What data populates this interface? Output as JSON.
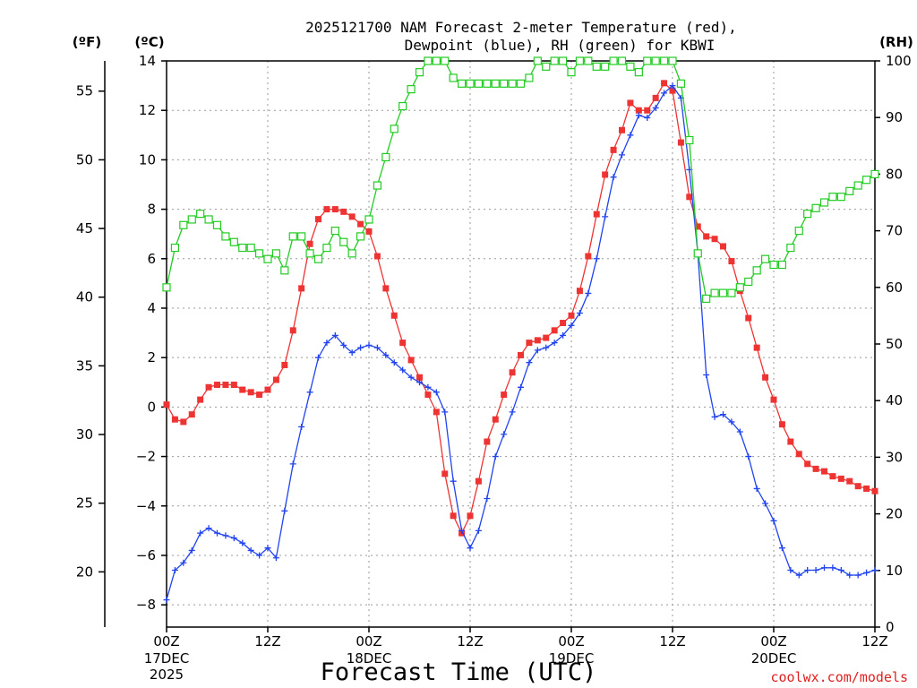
{
  "colors": {
    "temperature": "#ee3333",
    "dewpoint": "#2244ee",
    "rh": "#22cc22",
    "grid": "#999999",
    "credit": "#dd2222"
  },
  "chart_data": {
    "type": "line",
    "title_line1": "2025121700 NAM Forecast 2-meter Temperature (red),",
    "title_line2": "Dewpoint (blue), RH (green) for KBWI",
    "xlabel": "Forecast Time (UTC)",
    "credit": "coolwx.com/models",
    "units": {
      "fahrenheit": "(ºF)",
      "celsius": "(ºC)",
      "rh": "(RH)"
    },
    "x_range_hours": [
      0,
      84
    ],
    "celsius_range": [
      -8.9,
      14
    ],
    "rh_range": [
      0,
      100
    ],
    "x_ticks": [
      {
        "hour": 0,
        "label": "00Z",
        "date": "17DEC",
        "year": "2025"
      },
      {
        "hour": 12,
        "label": "12Z",
        "date": "",
        "year": ""
      },
      {
        "hour": 24,
        "label": "00Z",
        "date": "18DEC",
        "year": ""
      },
      {
        "hour": 36,
        "label": "12Z",
        "date": "",
        "year": ""
      },
      {
        "hour": 48,
        "label": "00Z",
        "date": "19DEC",
        "year": ""
      },
      {
        "hour": 60,
        "label": "12Z",
        "date": "",
        "year": ""
      },
      {
        "hour": 72,
        "label": "00Z",
        "date": "20DEC",
        "year": ""
      },
      {
        "hour": 84,
        "label": "12Z",
        "date": "",
        "year": ""
      }
    ],
    "celsius_ticks": [
      "-8",
      "-6",
      "-4",
      "-2",
      "0",
      "2",
      "4",
      "6",
      "8",
      "10",
      "12",
      "14"
    ],
    "fahrenheit_ticks": [
      "20",
      "25",
      "30",
      "35",
      "40",
      "45",
      "50",
      "55"
    ],
    "rh_ticks": [
      "0",
      "10",
      "20",
      "30",
      "40",
      "50",
      "60",
      "70",
      "80",
      "90",
      "100"
    ],
    "series": [
      {
        "name": "Temperature",
        "unit": "C",
        "marker": "filled-square",
        "values": [
          [
            0,
            0.1
          ],
          [
            1,
            -0.5
          ],
          [
            2,
            -0.6
          ],
          [
            3,
            -0.3
          ],
          [
            4,
            0.3
          ],
          [
            5,
            0.8
          ],
          [
            6,
            0.9
          ],
          [
            7,
            0.9
          ],
          [
            8,
            0.9
          ],
          [
            9,
            0.7
          ],
          [
            10,
            0.6
          ],
          [
            11,
            0.5
          ],
          [
            12,
            0.7
          ],
          [
            13,
            1.1
          ],
          [
            14,
            1.7
          ],
          [
            15,
            3.1
          ],
          [
            16,
            4.8
          ],
          [
            17,
            6.6
          ],
          [
            18,
            7.6
          ],
          [
            19,
            8.0
          ],
          [
            20,
            8.0
          ],
          [
            21,
            7.9
          ],
          [
            22,
            7.7
          ],
          [
            23,
            7.4
          ],
          [
            24,
            7.1
          ],
          [
            25,
            6.1
          ],
          [
            26,
            4.8
          ],
          [
            27,
            3.7
          ],
          [
            28,
            2.6
          ],
          [
            29,
            1.9
          ],
          [
            30,
            1.2
          ],
          [
            31,
            0.5
          ],
          [
            32,
            -0.2
          ],
          [
            33,
            -2.7
          ],
          [
            34,
            -4.4
          ],
          [
            35,
            -5.1
          ],
          [
            36,
            -4.4
          ],
          [
            37,
            -3.0
          ],
          [
            38,
            -1.4
          ],
          [
            39,
            -0.5
          ],
          [
            40,
            0.5
          ],
          [
            41,
            1.4
          ],
          [
            42,
            2.1
          ],
          [
            43,
            2.6
          ],
          [
            44,
            2.7
          ],
          [
            45,
            2.8
          ],
          [
            46,
            3.1
          ],
          [
            47,
            3.4
          ],
          [
            48,
            3.7
          ],
          [
            49,
            4.7
          ],
          [
            50,
            6.1
          ],
          [
            51,
            7.8
          ],
          [
            52,
            9.4
          ],
          [
            53,
            10.4
          ],
          [
            54,
            11.2
          ],
          [
            55,
            12.3
          ],
          [
            56,
            12.0
          ],
          [
            57,
            12.0
          ],
          [
            58,
            12.5
          ],
          [
            59,
            13.1
          ],
          [
            60,
            12.8
          ],
          [
            61,
            10.7
          ],
          [
            62,
            8.5
          ],
          [
            63,
            7.3
          ],
          [
            64,
            6.9
          ],
          [
            65,
            6.8
          ],
          [
            66,
            6.5
          ],
          [
            67,
            5.9
          ],
          [
            68,
            4.7
          ],
          [
            69,
            3.6
          ],
          [
            70,
            2.4
          ],
          [
            71,
            1.2
          ],
          [
            72,
            0.3
          ],
          [
            73,
            -0.7
          ],
          [
            74,
            -1.4
          ],
          [
            75,
            -1.9
          ],
          [
            76,
            -2.3
          ],
          [
            77,
            -2.5
          ],
          [
            78,
            -2.6
          ],
          [
            79,
            -2.8
          ],
          [
            80,
            -2.9
          ],
          [
            81,
            -3.0
          ],
          [
            82,
            -3.2
          ],
          [
            83,
            -3.3
          ],
          [
            84,
            -3.4
          ]
        ]
      },
      {
        "name": "Dewpoint",
        "unit": "C",
        "marker": "plus",
        "values": [
          [
            0,
            -7.8
          ],
          [
            1,
            -6.6
          ],
          [
            2,
            -6.3
          ],
          [
            3,
            -5.8
          ],
          [
            4,
            -5.1
          ],
          [
            5,
            -4.9
          ],
          [
            6,
            -5.1
          ],
          [
            7,
            -5.2
          ],
          [
            8,
            -5.3
          ],
          [
            9,
            -5.5
          ],
          [
            10,
            -5.8
          ],
          [
            11,
            -6.0
          ],
          [
            12,
            -5.7
          ],
          [
            13,
            -6.1
          ],
          [
            14,
            -4.2
          ],
          [
            15,
            -2.3
          ],
          [
            16,
            -0.8
          ],
          [
            17,
            0.6
          ],
          [
            18,
            2.0
          ],
          [
            19,
            2.6
          ],
          [
            20,
            2.9
          ],
          [
            21,
            2.5
          ],
          [
            22,
            2.2
          ],
          [
            23,
            2.4
          ],
          [
            24,
            2.5
          ],
          [
            25,
            2.4
          ],
          [
            26,
            2.1
          ],
          [
            27,
            1.8
          ],
          [
            28,
            1.5
          ],
          [
            29,
            1.2
          ],
          [
            30,
            1.0
          ],
          [
            31,
            0.8
          ],
          [
            32,
            0.6
          ],
          [
            33,
            -0.2
          ],
          [
            34,
            -3.0
          ],
          [
            35,
            -5.0
          ],
          [
            36,
            -5.7
          ],
          [
            37,
            -5.0
          ],
          [
            38,
            -3.7
          ],
          [
            39,
            -2.0
          ],
          [
            40,
            -1.1
          ],
          [
            41,
            -0.2
          ],
          [
            42,
            0.8
          ],
          [
            43,
            1.8
          ],
          [
            44,
            2.3
          ],
          [
            45,
            2.4
          ],
          [
            46,
            2.6
          ],
          [
            47,
            2.9
          ],
          [
            48,
            3.3
          ],
          [
            49,
            3.8
          ],
          [
            50,
            4.6
          ],
          [
            51,
            6.0
          ],
          [
            52,
            7.7
          ],
          [
            53,
            9.3
          ],
          [
            54,
            10.2
          ],
          [
            55,
            11.0
          ],
          [
            56,
            11.8
          ],
          [
            57,
            11.7
          ],
          [
            58,
            12.1
          ],
          [
            59,
            12.7
          ],
          [
            60,
            13.0
          ],
          [
            61,
            12.5
          ],
          [
            62,
            9.6
          ],
          [
            63,
            6.2
          ],
          [
            64,
            1.3
          ],
          [
            65,
            -0.4
          ],
          [
            66,
            -0.3
          ],
          [
            67,
            -0.6
          ],
          [
            68,
            -1.0
          ],
          [
            69,
            -2.0
          ],
          [
            70,
            -3.3
          ],
          [
            71,
            -3.9
          ],
          [
            72,
            -4.6
          ],
          [
            73,
            -5.7
          ],
          [
            74,
            -6.6
          ],
          [
            75,
            -6.8
          ],
          [
            76,
            -6.6
          ],
          [
            77,
            -6.6
          ],
          [
            78,
            -6.5
          ],
          [
            79,
            -6.5
          ],
          [
            80,
            -6.6
          ],
          [
            81,
            -6.8
          ],
          [
            82,
            -6.8
          ],
          [
            83,
            -6.7
          ],
          [
            84,
            -6.6
          ]
        ]
      },
      {
        "name": "RH",
        "unit": "%",
        "marker": "open-square",
        "values": [
          [
            0,
            60
          ],
          [
            1,
            67
          ],
          [
            2,
            71
          ],
          [
            3,
            72
          ],
          [
            4,
            73
          ],
          [
            5,
            72
          ],
          [
            6,
            71
          ],
          [
            7,
            69
          ],
          [
            8,
            68
          ],
          [
            9,
            67
          ],
          [
            10,
            67
          ],
          [
            11,
            66
          ],
          [
            12,
            65
          ],
          [
            13,
            66
          ],
          [
            14,
            63
          ],
          [
            15,
            69
          ],
          [
            16,
            69
          ],
          [
            17,
            66
          ],
          [
            18,
            65
          ],
          [
            19,
            67
          ],
          [
            20,
            70
          ],
          [
            21,
            68
          ],
          [
            22,
            66
          ],
          [
            23,
            69
          ],
          [
            24,
            72
          ],
          [
            25,
            78
          ],
          [
            26,
            83
          ],
          [
            27,
            88
          ],
          [
            28,
            92
          ],
          [
            29,
            95
          ],
          [
            30,
            98
          ],
          [
            31,
            101
          ],
          [
            32,
            101
          ],
          [
            33,
            100
          ],
          [
            34,
            97
          ],
          [
            35,
            96
          ],
          [
            36,
            96
          ],
          [
            37,
            96
          ],
          [
            38,
            96
          ],
          [
            39,
            96
          ],
          [
            40,
            96
          ],
          [
            41,
            96
          ],
          [
            42,
            96
          ],
          [
            43,
            97
          ],
          [
            44,
            100
          ],
          [
            45,
            99
          ],
          [
            46,
            101
          ],
          [
            47,
            100
          ],
          [
            48,
            98
          ],
          [
            49,
            100
          ],
          [
            50,
            102
          ],
          [
            51,
            99
          ],
          [
            52,
            99
          ],
          [
            53,
            100
          ],
          [
            54,
            100
          ],
          [
            55,
            99
          ],
          [
            56,
            98
          ],
          [
            57,
            100
          ],
          [
            58,
            101
          ],
          [
            59,
            101
          ],
          [
            60,
            100
          ],
          [
            61,
            96
          ],
          [
            62,
            86
          ],
          [
            63,
            66
          ],
          [
            64,
            58
          ],
          [
            65,
            59
          ],
          [
            66,
            59
          ],
          [
            67,
            59
          ],
          [
            68,
            60
          ],
          [
            69,
            61
          ],
          [
            70,
            63
          ],
          [
            71,
            65
          ],
          [
            72,
            64
          ],
          [
            73,
            64
          ],
          [
            74,
            67
          ],
          [
            75,
            70
          ],
          [
            76,
            73
          ],
          [
            77,
            74
          ],
          [
            78,
            75
          ],
          [
            79,
            76
          ],
          [
            80,
            76
          ],
          [
            81,
            77
          ],
          [
            82,
            78
          ],
          [
            83,
            79
          ],
          [
            84,
            80
          ]
        ]
      }
    ]
  }
}
